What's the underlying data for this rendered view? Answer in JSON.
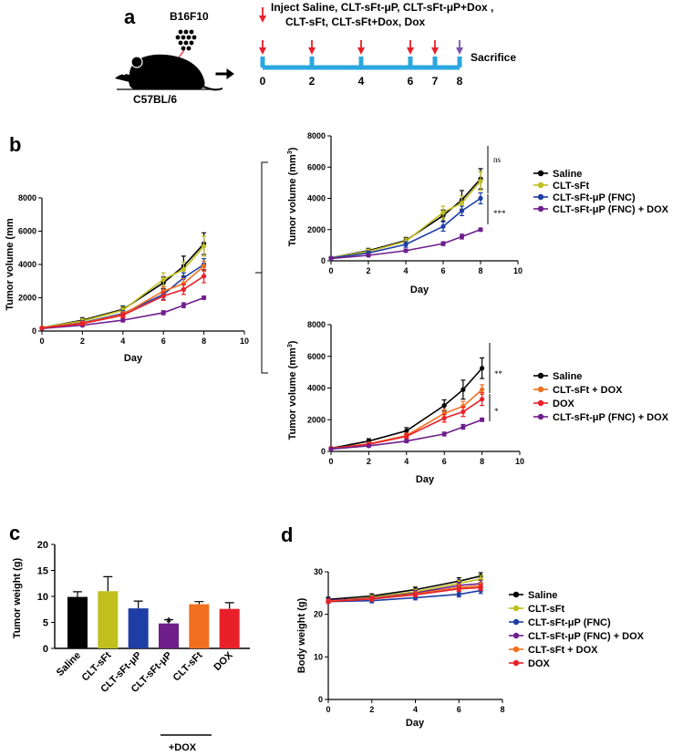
{
  "panels": {
    "a": "a",
    "b": "b",
    "c": "c",
    "d": "d"
  },
  "colors": {
    "saline": "#000000",
    "clt": "#bfbf1e",
    "fnc": "#1f3ea5",
    "fncdox": "#6e1f8c",
    "cltdox": "#f07020",
    "dox": "#e8202a",
    "timeline": "#2aa7e0",
    "inject_arrow": "#e8202a",
    "sacrifice_arrow": "#7b55a8",
    "mouse": "#000000"
  },
  "schematic": {
    "cell_line": "B16F10",
    "mouse_strain": "C57BL/6",
    "inject_line1": "Inject Saline, CLT-sFt-μP,  CLT-sFt-μP+Dox ,",
    "inject_line2": "CLT-sFt, CLT-sFt+Dox, Dox",
    "sacrifice": "Sacrifice",
    "days": [
      "0",
      "2",
      "4",
      "6",
      "7",
      "8"
    ],
    "injection_days": [
      0,
      2,
      4,
      6,
      7
    ],
    "sacrifice_day": 8
  },
  "chart_data": [
    {
      "id": "b_main",
      "type": "line",
      "title": "",
      "xlabel": "Day",
      "ylabel": "Tumor volume (mm",
      "xlim": [
        0,
        10
      ],
      "ylim": [
        0,
        8000
      ],
      "xticks": [
        "0",
        "2",
        "4",
        "6",
        "8",
        "10"
      ],
      "yticks": [
        "0",
        "2000",
        "4000",
        "6000",
        "8000"
      ],
      "x": [
        0,
        2,
        4,
        6,
        7,
        8
      ],
      "series": [
        {
          "name": "Saline",
          "color": "#000000",
          "values": [
            200,
            650,
            1300,
            2900,
            3900,
            5250
          ],
          "err": [
            60,
            150,
            200,
            350,
            600,
            650
          ]
        },
        {
          "name": "CLT-sFt",
          "color": "#bfbf1e",
          "values": [
            200,
            600,
            1250,
            3100,
            3700,
            5100
          ],
          "err": [
            60,
            150,
            200,
            400,
            450,
            600
          ]
        },
        {
          "name": "CLT-sFt-μP (FNC)",
          "color": "#1f3ea5",
          "values": [
            180,
            500,
            1050,
            2200,
            3200,
            4000
          ],
          "err": [
            50,
            120,
            180,
            300,
            300,
            350
          ]
        },
        {
          "name": "CLT-sFt-μP (FNC) + DOX",
          "color": "#6e1f8c",
          "values": [
            150,
            350,
            650,
            1100,
            1550,
            2000
          ],
          "err": [
            40,
            80,
            100,
            120,
            150,
            100
          ]
        },
        {
          "name": "CLT-sFt + DOX",
          "color": "#f07020",
          "values": [
            190,
            480,
            1000,
            2400,
            2850,
            3900
          ],
          "err": [
            50,
            100,
            150,
            250,
            300,
            300
          ]
        },
        {
          "name": "DOX",
          "color": "#e8202a",
          "values": [
            180,
            450,
            950,
            2100,
            2500,
            3300
          ],
          "err": [
            50,
            100,
            150,
            250,
            300,
            400
          ]
        }
      ]
    },
    {
      "id": "b_top",
      "type": "line",
      "xlabel": "Day",
      "ylabel": "Tumor volume (mm",
      "ylabel_sup": "3",
      "ylabel_close": ")",
      "xlim": [
        0,
        10
      ],
      "ylim": [
        0,
        8000
      ],
      "xticks": [
        "0",
        "2",
        "4",
        "6",
        "8",
        "10"
      ],
      "yticks": [
        "0",
        "2000",
        "4000",
        "6000",
        "8000"
      ],
      "x": [
        0,
        2,
        4,
        6,
        7,
        8
      ],
      "series": [
        {
          "name": "Saline",
          "color": "#000000",
          "values": [
            200,
            650,
            1300,
            2900,
            3900,
            5250
          ],
          "err": [
            60,
            150,
            200,
            350,
            600,
            650
          ]
        },
        {
          "name": "CLT-sFt",
          "color": "#bfbf1e",
          "values": [
            200,
            600,
            1250,
            3100,
            3700,
            5100
          ],
          "err": [
            60,
            150,
            200,
            400,
            450,
            600
          ]
        },
        {
          "name": "CLT-sFt-μP (FNC)",
          "color": "#1f3ea5",
          "values": [
            180,
            500,
            1050,
            2200,
            3200,
            4000
          ],
          "err": [
            50,
            120,
            180,
            300,
            300,
            350
          ]
        },
        {
          "name": "CLT-sFt-μP (FNC) + DOX",
          "color": "#6e1f8c",
          "values": [
            150,
            350,
            650,
            1100,
            1550,
            2000
          ],
          "err": [
            40,
            80,
            100,
            120,
            150,
            100
          ]
        }
      ],
      "annotations": [
        "ns",
        "***"
      ]
    },
    {
      "id": "b_bottom",
      "type": "line",
      "xlabel": "Day",
      "ylabel": "Tumor volume (mm",
      "ylabel_sup": "3",
      "ylabel_close": ")",
      "xlim": [
        0,
        10
      ],
      "ylim": [
        0,
        8000
      ],
      "xticks": [
        "0",
        "2",
        "4",
        "6",
        "8",
        "10"
      ],
      "yticks": [
        "0",
        "2000",
        "4000",
        "6000",
        "8000"
      ],
      "x": [
        0,
        2,
        4,
        6,
        7,
        8
      ],
      "series": [
        {
          "name": "Saline",
          "color": "#000000",
          "values": [
            200,
            650,
            1300,
            2900,
            3900,
            5250
          ],
          "err": [
            60,
            150,
            200,
            350,
            600,
            650
          ]
        },
        {
          "name": "CLT-sFt + DOX",
          "color": "#f07020",
          "values": [
            190,
            480,
            1000,
            2400,
            2850,
            3900
          ],
          "err": [
            50,
            100,
            150,
            250,
            300,
            300
          ]
        },
        {
          "name": "DOX",
          "color": "#e8202a",
          "values": [
            180,
            450,
            950,
            2100,
            2500,
            3300
          ],
          "err": [
            50,
            100,
            150,
            250,
            300,
            400
          ]
        },
        {
          "name": "CLT-sFt-μP (FNC) + DOX",
          "color": "#6e1f8c",
          "values": [
            150,
            350,
            650,
            1100,
            1550,
            2000
          ],
          "err": [
            40,
            80,
            100,
            120,
            150,
            100
          ]
        }
      ],
      "annotations": [
        "**",
        "*"
      ]
    },
    {
      "id": "c",
      "type": "bar",
      "ylabel": "Tumor weight (g)",
      "ylim": [
        0,
        20
      ],
      "yticks": [
        "0",
        "5",
        "10",
        "15",
        "20"
      ],
      "categories": [
        "Saline",
        "CLT-sFt",
        "CLT-sFt-μP",
        "CLT-sFt-μP",
        "CLT-sFt",
        "DOX"
      ],
      "values": [
        9.9,
        11.0,
        7.7,
        4.8,
        8.5,
        7.6
      ],
      "err": [
        1.0,
        2.8,
        1.4,
        0.7,
        0.5,
        1.2
      ],
      "colors": [
        "#000000",
        "#bfbf1e",
        "#1f3ea5",
        "#6e1f8c",
        "#f07020",
        "#e8202a"
      ],
      "group_label": "+DOX",
      "significance": "*"
    },
    {
      "id": "d",
      "type": "line",
      "xlabel": "Day",
      "ylabel": "Body weight (g)",
      "xlim": [
        0,
        8
      ],
      "ylim": [
        0,
        30
      ],
      "xticks": [
        "0",
        "2",
        "4",
        "6",
        "8"
      ],
      "yticks": [
        "0",
        "10",
        "20",
        "30"
      ],
      "x": [
        0,
        2,
        4,
        6,
        7
      ],
      "series": [
        {
          "name": "Saline",
          "color": "#000000",
          "values": [
            23.5,
            24.3,
            25.8,
            27.8,
            29.0
          ],
          "err": [
            0.5,
            0.5,
            0.6,
            0.8,
            0.8
          ]
        },
        {
          "name": "CLT-sFt",
          "color": "#bfbf1e",
          "values": [
            23.2,
            24.0,
            25.3,
            27.3,
            28.3
          ],
          "err": [
            0.4,
            0.5,
            0.6,
            0.7,
            0.8
          ]
        },
        {
          "name": "CLT-sFt-μP (FNC)",
          "color": "#1f3ea5",
          "values": [
            23.0,
            23.2,
            23.9,
            24.7,
            25.6
          ],
          "err": [
            0.4,
            0.5,
            0.5,
            0.6,
            0.7
          ]
        },
        {
          "name": "CLT-sFt-μP (FNC) + DOX",
          "color": "#6e1f8c",
          "values": [
            23.3,
            23.8,
            25.0,
            26.8,
            27.2
          ],
          "err": [
            0.4,
            0.5,
            0.6,
            0.7,
            0.8
          ]
        },
        {
          "name": "CLT-sFt + DOX",
          "color": "#f07020",
          "values": [
            23.1,
            23.7,
            24.8,
            26.3,
            26.7
          ],
          "err": [
            0.4,
            0.5,
            0.5,
            0.7,
            0.7
          ]
        },
        {
          "name": "DOX",
          "color": "#e8202a",
          "values": [
            23.0,
            23.6,
            24.6,
            26.0,
            26.3
          ],
          "err": [
            0.4,
            0.5,
            0.5,
            0.6,
            0.7
          ]
        }
      ]
    }
  ]
}
